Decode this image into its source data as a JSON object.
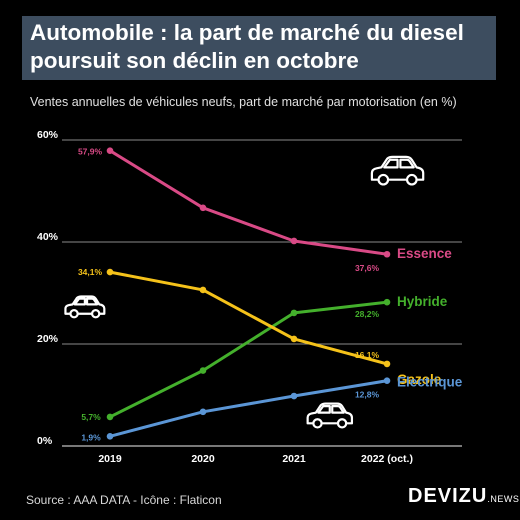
{
  "title": {
    "line1": "Automobile : la part de marché du diesel",
    "line2": "poursuit son déclin en octobre"
  },
  "subtitle": "Ventes annuelles de véhicules neufs, part de marché par motorisation (en %)",
  "footer": {
    "source": "Source : AAA DATA - Icône : Flaticon",
    "brand_main": "DEVIZU",
    "brand_sub": ".NEWS"
  },
  "icons": [
    "car-icon-top-right",
    "car-icon-left",
    "car-icon-bottom"
  ],
  "chart_data": {
    "type": "line",
    "categories": [
      "2019",
      "2020",
      "2021",
      "2022 (oct.)"
    ],
    "y_ticks": [
      "0%",
      "20%",
      "40%",
      "60%"
    ],
    "ylim": [
      0,
      60
    ],
    "grid": true,
    "series": [
      {
        "name": "Essence",
        "color": "#d94a86",
        "values": [
          57.9,
          46.7,
          40.2,
          37.6
        ],
        "labels": [
          "57,9%",
          "",
          "",
          "37,6%"
        ]
      },
      {
        "name": "Hybride",
        "color": "#44b02c",
        "values": [
          5.7,
          14.8,
          26.1,
          28.2
        ],
        "labels": [
          "5,7%",
          "",
          "",
          "28,2%"
        ]
      },
      {
        "name": "Gazole",
        "color": "#f5c21a",
        "values": [
          34.1,
          30.6,
          21.0,
          16.1
        ],
        "labels": [
          "34,1%",
          "",
          "",
          "16,1%"
        ]
      },
      {
        "name": "Electrique",
        "color": "#5b96d6",
        "values": [
          1.9,
          6.7,
          9.8,
          12.8
        ],
        "labels": [
          "1,9%",
          "",
          "",
          "12,8%"
        ]
      }
    ]
  }
}
